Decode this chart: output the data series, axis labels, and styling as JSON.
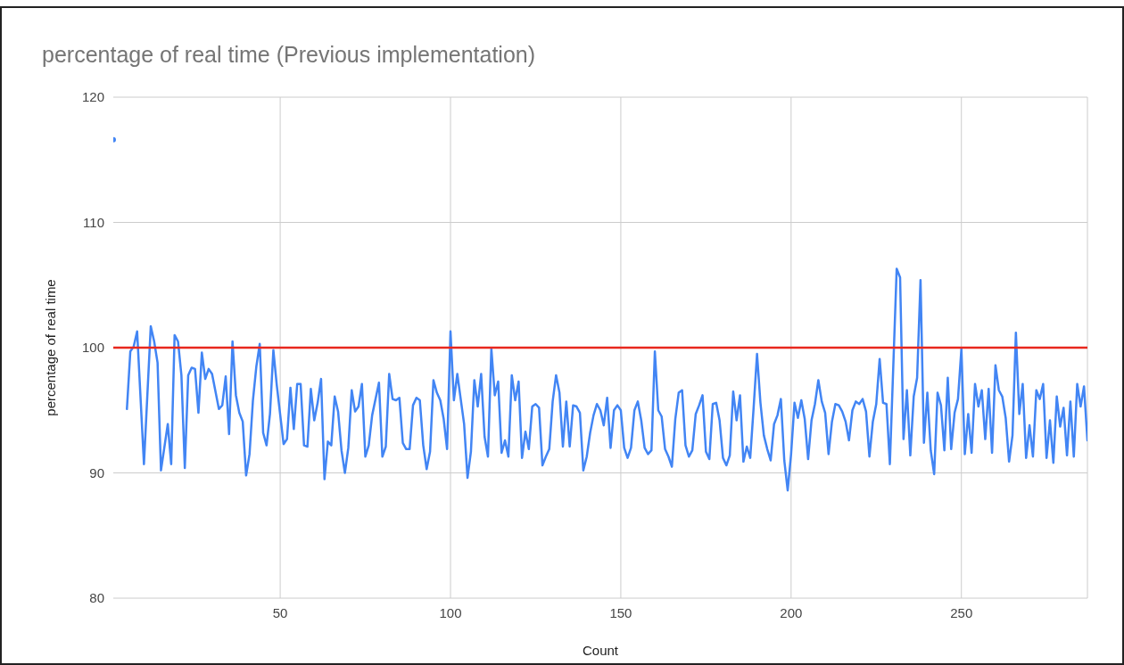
{
  "chart_data": {
    "type": "line",
    "title": "percentage of real time (Previous implementation)",
    "xlabel": "Count",
    "ylabel": "percentage of real time",
    "xlim": [
      1,
      287
    ],
    "xticks": [
      50,
      100,
      150,
      200,
      250
    ],
    "ylim": [
      80,
      120
    ],
    "yticks": [
      80,
      90,
      100,
      110,
      120
    ],
    "grid": true,
    "series": [
      {
        "color": "#4285f4",
        "x": [
          1,
          2,
          5,
          6,
          7,
          8,
          10,
          12,
          13,
          14,
          15,
          17,
          18,
          19,
          20,
          21,
          22,
          23,
          24,
          25,
          26,
          27,
          28,
          29,
          30,
          32,
          33,
          34,
          35,
          36,
          37,
          38,
          39,
          40,
          41,
          42,
          43,
          44,
          45,
          46,
          47,
          48,
          49,
          51,
          52,
          53,
          54,
          55,
          56,
          57,
          58,
          59,
          60,
          61,
          62,
          63,
          64,
          65,
          66,
          67,
          68,
          69,
          70,
          71,
          72,
          73,
          74,
          75,
          76,
          77,
          78,
          79,
          80,
          81,
          82,
          83,
          84,
          85,
          86,
          87,
          88,
          89,
          90,
          91,
          92,
          93,
          94,
          95,
          96,
          97,
          98,
          99,
          100,
          101,
          102,
          104,
          105,
          106,
          107,
          108,
          109,
          110,
          111,
          112,
          113,
          114,
          115,
          116,
          117,
          118,
          119,
          120,
          121,
          122,
          123,
          124,
          125,
          126,
          127,
          128,
          129,
          130,
          131,
          132,
          133,
          134,
          135,
          136,
          137,
          138,
          139,
          140,
          141,
          142,
          143,
          144,
          145,
          146,
          147,
          148,
          149,
          150,
          151,
          152,
          153,
          154,
          155,
          156,
          157,
          158,
          159,
          160,
          161,
          162,
          163,
          164,
          165,
          166,
          167,
          168,
          169,
          170,
          171,
          172,
          173,
          174,
          175,
          176,
          177,
          178,
          179,
          180,
          181,
          182,
          183,
          184,
          185,
          186,
          187,
          188,
          189,
          190,
          191,
          192,
          193,
          194,
          195,
          196,
          197,
          198,
          199,
          200,
          201,
          202,
          203,
          204,
          205,
          206,
          207,
          208,
          209,
          210,
          211,
          212,
          213,
          214,
          215,
          216,
          217,
          218,
          219,
          220,
          221,
          222,
          223,
          224,
          225,
          226,
          227,
          228,
          229,
          231,
          232,
          233,
          234,
          235,
          236,
          237,
          238,
          239,
          240,
          241,
          242,
          243,
          244,
          245,
          246,
          247,
          248,
          249,
          250,
          251,
          252,
          253,
          254,
          255,
          256,
          257,
          258,
          259,
          260,
          261,
          262,
          263,
          264,
          265,
          266,
          267,
          268,
          269,
          270,
          271,
          272,
          273,
          274,
          275,
          276,
          277,
          278,
          279,
          280,
          281,
          282,
          283,
          284,
          285,
          286,
          287
        ],
        "values": [
          116.6,
          null,
          95.1,
          99.7,
          100.1,
          101.3,
          90.7,
          101.7,
          100.5,
          98.8,
          90.2,
          93.9,
          90.7,
          101,
          100.5,
          97.8,
          90.4,
          97.8,
          98.4,
          98.3,
          94.8,
          99.6,
          97.5,
          98.3,
          97.9,
          95.1,
          95.4,
          97.7,
          93.1,
          100.5,
          96.2,
          94.8,
          94.1,
          89.8,
          91.5,
          95.8,
          98.5,
          100.3,
          93.2,
          92.2,
          94.7,
          99.8,
          97,
          92.3,
          92.7,
          96.8,
          93.5,
          97.1,
          97.1,
          92.2,
          92.1,
          96.7,
          94.2,
          95.6,
          97.5,
          89.5,
          92.5,
          92.2,
          96.1,
          94.9,
          91.8,
          90,
          92,
          96.6,
          94.9,
          95.3,
          97.1,
          91.3,
          92.2,
          94.6,
          95.9,
          97.2,
          91.3,
          92.1,
          97.9,
          95.9,
          95.8,
          96,
          92.4,
          91.9,
          91.9,
          95.4,
          96,
          95.8,
          92.2,
          90.3,
          91.7,
          97.4,
          96.4,
          95.8,
          94.3,
          91.9,
          101.3,
          95.8,
          97.9,
          93.9,
          89.6,
          91.7,
          97.4,
          95.3,
          97.9,
          92.9,
          91.3,
          99.9,
          96.2,
          97.3,
          91.6,
          92.6,
          91.3,
          97.8,
          95.8,
          97.3,
          91.2,
          93.3,
          91.9,
          95.3,
          95.5,
          95.2,
          90.6,
          91.3,
          91.9,
          95.7,
          97.8,
          96.4,
          92.1,
          95.7,
          92.1,
          95.4,
          95.3,
          94.8,
          90.2,
          91.3,
          93.2,
          94.6,
          95.5,
          95,
          93.8,
          96,
          92,
          95,
          95.4,
          95,
          92,
          91.2,
          92,
          95,
          95.7,
          94.2,
          92,
          91.5,
          91.8,
          99.7,
          95,
          94.5,
          91.9,
          91.3,
          90.5,
          94.3,
          96.4,
          96.6,
          92.2,
          91.3,
          91.8,
          94.7,
          95.4,
          96.2,
          91.7,
          91.1,
          95.5,
          95.6,
          94.2,
          91.2,
          90.6,
          91.4,
          96.5,
          94.2,
          96.2,
          90.9,
          92.1,
          91.2,
          95.2,
          99.5,
          95.6,
          93,
          91.9,
          91,
          93.9,
          94.6,
          95.9,
          91,
          88.6,
          91.5,
          95.6,
          94.4,
          95.8,
          94.3,
          91.1,
          94.2,
          95.5,
          97.4,
          95.7,
          94.8,
          91.5,
          94.1,
          95.5,
          95.4,
          94.9,
          94.1,
          92.6,
          95,
          95.7,
          95.5,
          95.9,
          94.9,
          91.3,
          94.1,
          95.5,
          99.1,
          95.6,
          95.5,
          90.7,
          106.3,
          105.6,
          92.7,
          96.6,
          91.4,
          96.1,
          97.6,
          105.4,
          92.4,
          96.4,
          91.8,
          89.9,
          96.4,
          95.4,
          91.8,
          97.6,
          91.9,
          94.8,
          95.9,
          99.9,
          91.5,
          94.7,
          91.6,
          97.1,
          95.3,
          96.6,
          92.7,
          96.7,
          91.6,
          98.6,
          96.6,
          96.1,
          94.4,
          90.9,
          93,
          101.2,
          94.7,
          97.1,
          91.2,
          93.8,
          91.3,
          96.6,
          95.9,
          97.1,
          91.2,
          94.2,
          90.8,
          96.1,
          93.7,
          95.2,
          91.4,
          95.7,
          91.3,
          97.1,
          95.3,
          96.9,
          92.6
        ]
      }
    ],
    "ref_lines": [
      {
        "axis": "y",
        "value": 100,
        "color": "#e8281e"
      }
    ]
  }
}
